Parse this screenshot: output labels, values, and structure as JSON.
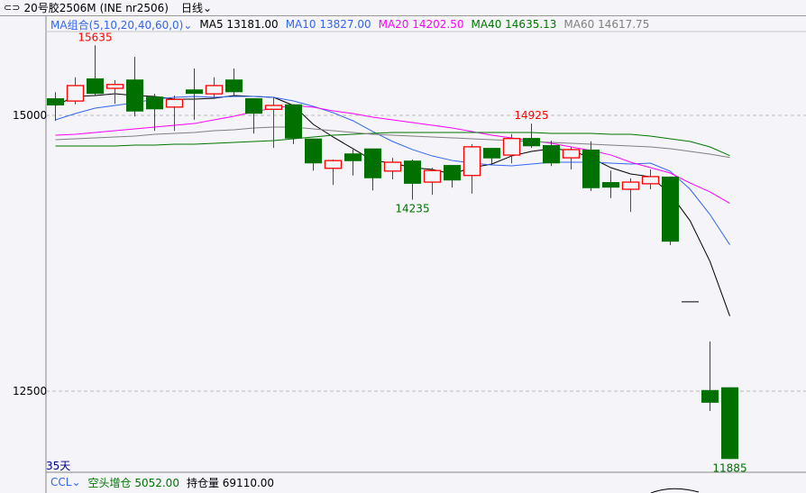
{
  "header": {
    "link_icon": "link-icon",
    "instrument": "20号胶2506",
    "badge": "M",
    "code": "(INE nr2506)",
    "period": "日线",
    "period_icon": "chevron-down-icon"
  },
  "ma_legend": {
    "group_label": "MA组合(5,10,20,40,60,0)",
    "items": [
      {
        "label": "MA5 13181.00",
        "color": "#000000"
      },
      {
        "label": "MA10 13827.00",
        "color": "#3366ee"
      },
      {
        "label": "MA20 14202.50",
        "color": "#ff00ff"
      },
      {
        "label": "MA40 14635.13",
        "color": "#007700"
      },
      {
        "label": "MA60 14617.75",
        "color": "#808080"
      }
    ]
  },
  "bottom_legend": {
    "indicator": "CCL",
    "position_change_label": "空头增仓 5052.00",
    "open_interest_label": "持仓量 69110.00"
  },
  "days_label": "35天",
  "colors": {
    "up": "#ff0000",
    "down": "#007000",
    "background": "#f4f4f9"
  },
  "chart_data": {
    "type": "candlestick",
    "y_ticks": [
      "15000",
      "12500"
    ],
    "ylim": [
      11800,
      15750
    ],
    "annotations": [
      {
        "label": "15635",
        "index": 2,
        "kind": "high"
      },
      {
        "label": "14925",
        "index": 24,
        "kind": "high"
      },
      {
        "label": "14235",
        "index": 18,
        "kind": "low"
      },
      {
        "label": "11885",
        "index": 34,
        "kind": "low"
      }
    ],
    "candles": [
      [
        15155,
        15210,
        14950,
        15090
      ],
      [
        15130,
        15345,
        15100,
        15270
      ],
      [
        15335,
        15635,
        15180,
        15195
      ],
      [
        15245,
        15320,
        15105,
        15280
      ],
      [
        15325,
        15530,
        14990,
        15035
      ],
      [
        15170,
        15195,
        14860,
        15055
      ],
      [
        15075,
        15180,
        14860,
        15145
      ],
      [
        15235,
        15425,
        14960,
        15195
      ],
      [
        15195,
        15345,
        15165,
        15270
      ],
      [
        15325,
        15425,
        15170,
        15210
      ],
      [
        15155,
        15155,
        14835,
        15015
      ],
      [
        15055,
        15165,
        14705,
        15090
      ],
      [
        15100,
        15100,
        14740,
        14790
      ],
      [
        14790,
        14790,
        14500,
        14565
      ],
      [
        14520,
        14600,
        14370,
        14590
      ],
      [
        14655,
        14690,
        14455,
        14585
      ],
      [
        14700,
        14700,
        14320,
        14430
      ],
      [
        14495,
        14615,
        14420,
        14575
      ],
      [
        14590,
        14600,
        14235,
        14380
      ],
      [
        14395,
        14525,
        14280,
        14500
      ],
      [
        14550,
        14550,
        14345,
        14410
      ],
      [
        14455,
        14740,
        14290,
        14715
      ],
      [
        14705,
        14705,
        14560,
        14610
      ],
      [
        14640,
        14830,
        14565,
        14790
      ],
      [
        14795,
        14925,
        14705,
        14720
      ],
      [
        14730,
        14770,
        14540,
        14565
      ],
      [
        14615,
        14715,
        14510,
        14690
      ],
      [
        14690,
        14765,
        14315,
        14340
      ],
      [
        14395,
        14500,
        14250,
        14345
      ],
      [
        14330,
        14430,
        14125,
        14395
      ],
      [
        14380,
        14510,
        14330,
        14445
      ],
      [
        14445,
        14445,
        13825,
        13855
      ],
      [
        13310,
        13310,
        13310,
        13310
      ],
      [
        12510,
        12950,
        12320,
        12395
      ],
      [
        12535,
        12535,
        11885,
        11885
      ]
    ],
    "series": [
      {
        "name": "MA5",
        "color": "#000000",
        "values": [
          15090,
          15172,
          15180,
          15196,
          15180,
          15172,
          15147,
          15147,
          15155,
          15180,
          15172,
          15163,
          15090,
          14918,
          14804,
          14698,
          14591,
          14567,
          14526,
          14510,
          14469,
          14526,
          14559,
          14632,
          14673,
          14698,
          14682,
          14616,
          14526,
          14469,
          14444,
          14289,
          14044,
          13676,
          13181
        ]
      },
      {
        "name": "MA10",
        "color": "#3366ee",
        "values": [
          14959,
          15016,
          15065,
          15090,
          15114,
          15147,
          15163,
          15172,
          15163,
          15172,
          15172,
          15163,
          15131,
          15082,
          15024,
          14951,
          14853,
          14763,
          14690,
          14632,
          14591,
          14567,
          14551,
          14542,
          14559,
          14575,
          14575,
          14575,
          14567,
          14559,
          14567,
          14493,
          14330,
          14101,
          13827
        ]
      },
      {
        "name": "MA20",
        "color": "#ff00ff",
        "values": [
          14820,
          14828,
          14845,
          14861,
          14877,
          14894,
          14910,
          14926,
          14959,
          14992,
          15033,
          15065,
          15090,
          15074,
          15041,
          15016,
          14984,
          14959,
          14935,
          14910,
          14886,
          14853,
          14820,
          14796,
          14771,
          14747,
          14714,
          14681,
          14641,
          14575,
          14526,
          14477,
          14387,
          14306,
          14202.5
        ]
      },
      {
        "name": "MA40",
        "color": "#007700",
        "values": [
          14722,
          14722,
          14722,
          14722,
          14730,
          14730,
          14739,
          14739,
          14747,
          14755,
          14763,
          14771,
          14788,
          14804,
          14820,
          14828,
          14837,
          14845,
          14845,
          14845,
          14845,
          14845,
          14845,
          14845,
          14845,
          14837,
          14837,
          14837,
          14828,
          14828,
          14812,
          14788,
          14763,
          14714,
          14635.13
        ]
      },
      {
        "name": "MA60",
        "color": "#808080",
        "values": [
          14779,
          14788,
          14796,
          14804,
          14812,
          14828,
          14837,
          14845,
          14861,
          14869,
          14886,
          14894,
          14894,
          14877,
          14861,
          14845,
          14828,
          14820,
          14812,
          14804,
          14796,
          14788,
          14779,
          14771,
          14763,
          14755,
          14747,
          14739,
          14730,
          14722,
          14714,
          14698,
          14673,
          14649,
          14617.75
        ]
      }
    ]
  }
}
